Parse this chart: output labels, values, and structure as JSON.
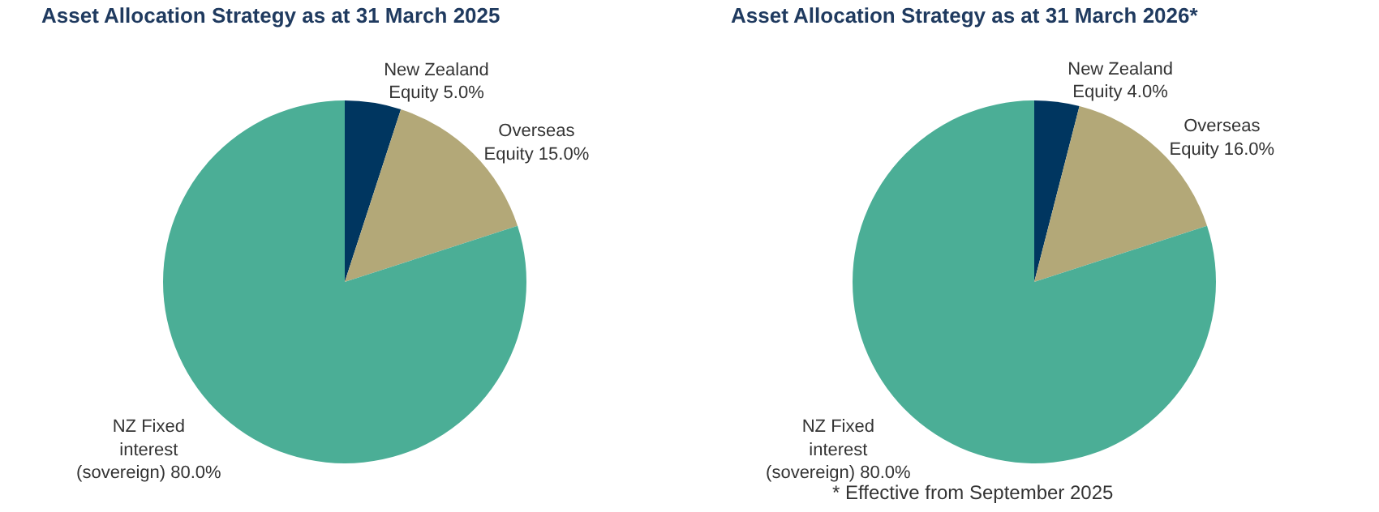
{
  "chart_data": [
    {
      "type": "pie",
      "title": "Asset Allocation Strategy as at 31 March 2025",
      "categories": [
        "New Zealand Equity",
        "Overseas Equity",
        "NZ Fixed interest (sovereign)"
      ],
      "values": [
        5.0,
        15.0,
        80.0
      ],
      "value_labels": [
        "5.0%",
        "15.0%",
        "80.0%"
      ],
      "colors": [
        "#003660",
        "#b3a878",
        "#4bae96"
      ],
      "legend": false
    },
    {
      "type": "pie",
      "title": "Asset Allocation Strategy as at 31 March 2026*",
      "categories": [
        "New Zealand Equity",
        "Overseas Equity",
        "NZ Fixed interest (sovereign)"
      ],
      "values": [
        4.0,
        16.0,
        80.0
      ],
      "value_labels": [
        "4.0%",
        "16.0%",
        "80.0%"
      ],
      "colors": [
        "#003660",
        "#b3a878",
        "#4bae96"
      ],
      "legend": false,
      "annotations": [
        "* Effective from September 2025"
      ]
    }
  ]
}
